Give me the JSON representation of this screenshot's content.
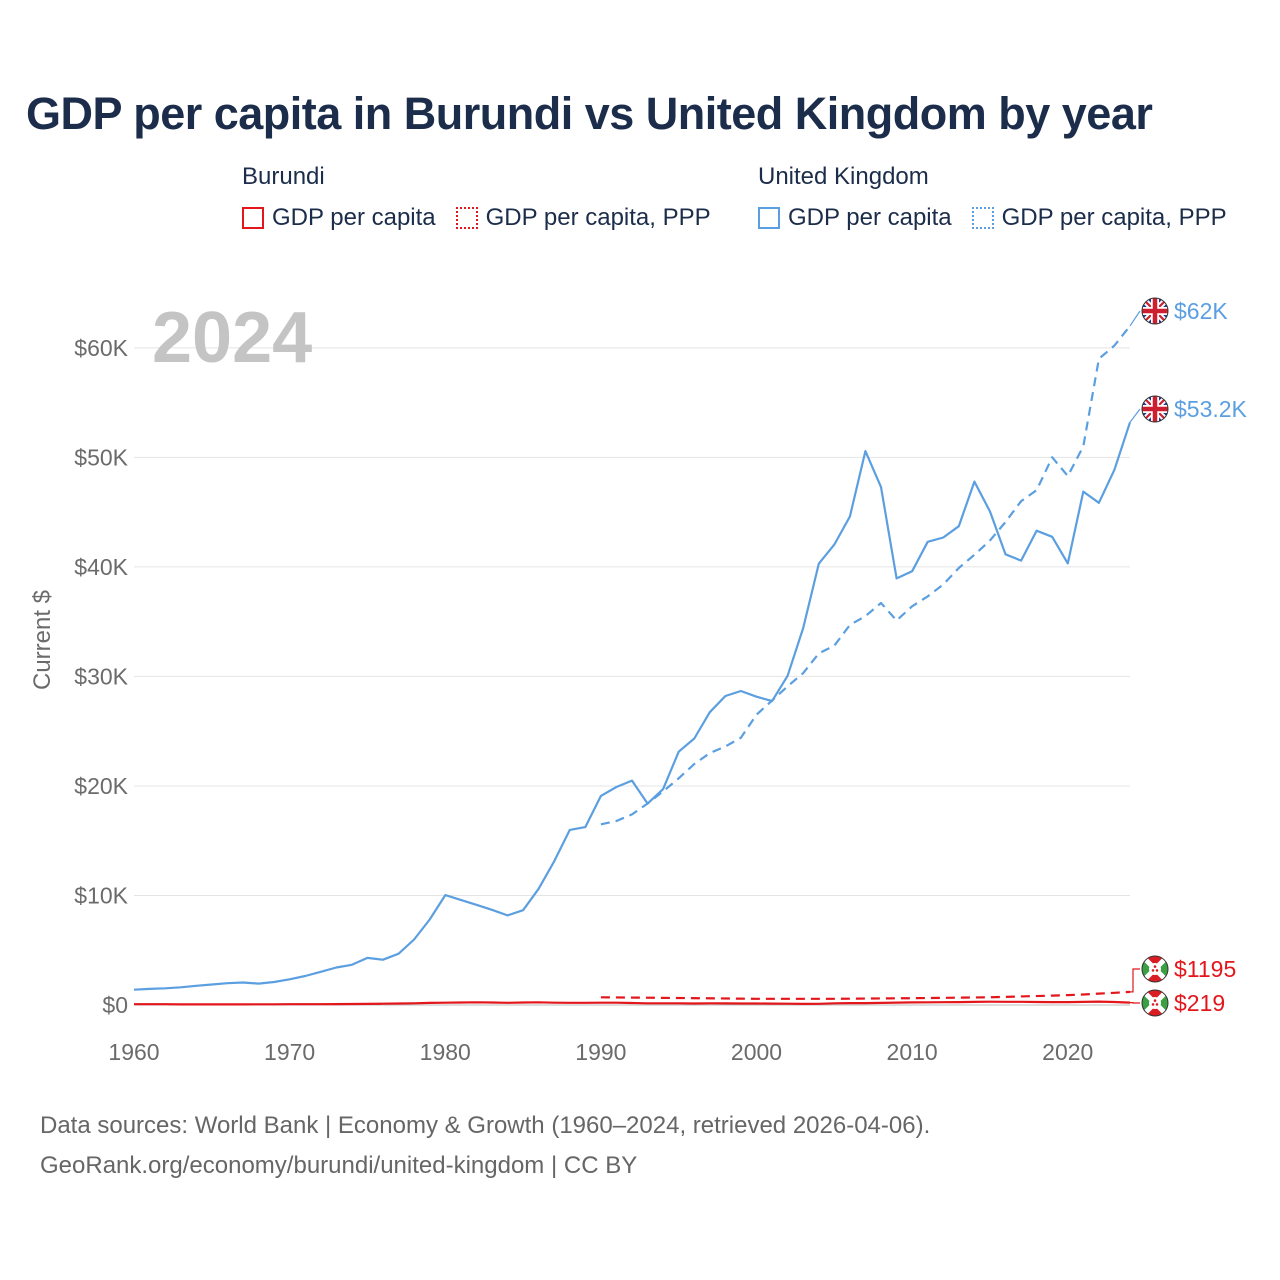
{
  "title": "GDP per capita in Burundi vs United Kingdom by year",
  "legend": {
    "burundi": {
      "name": "Burundi",
      "gdp": "GDP per capita",
      "ppp": "GDP per capita, PPP",
      "color": "#e3161b"
    },
    "uk": {
      "name": "United Kingdom",
      "gdp": "GDP per capita",
      "ppp": "GDP per capita, PPP",
      "color": "#5b9fe0"
    }
  },
  "year_watermark": "2024",
  "sources": {
    "line1": "Data sources: World Bank | Economy & Growth (1960–2024, retrieved 2026-04-06).",
    "line2": "GeoRank.org/economy/burundi/united-kingdom | CC BY"
  },
  "chart_data": {
    "type": "line",
    "title": "GDP per capita in Burundi vs United Kingdom by year",
    "xlabel": "",
    "ylabel": "Current $",
    "xlim": [
      1960,
      2024
    ],
    "ylim": [
      0,
      64000
    ],
    "grid": true,
    "x_ticks": [
      1960,
      1970,
      1980,
      1990,
      2000,
      2010,
      2020
    ],
    "x_tick_labels": [
      "1960",
      "1970",
      "1980",
      "1990",
      "2000",
      "2010",
      "2020"
    ],
    "y_ticks": [
      0,
      10000,
      20000,
      30000,
      40000,
      50000,
      60000
    ],
    "y_tick_labels": [
      "$0",
      "$10K",
      "$20K",
      "$30K",
      "$40K",
      "$50K",
      "$60K"
    ],
    "series": [
      {
        "name": "United Kingdom GDP per capita",
        "country": "United Kingdom",
        "style": "solid",
        "color": "#5b9fe0",
        "end_label": "$53.2K",
        "x": [
          1960,
          1961,
          1962,
          1963,
          1964,
          1965,
          1966,
          1967,
          1968,
          1969,
          1970,
          1971,
          1972,
          1973,
          1974,
          1975,
          1976,
          1977,
          1978,
          1979,
          1980,
          1981,
          1982,
          1983,
          1984,
          1985,
          1986,
          1987,
          1988,
          1989,
          1990,
          1991,
          1992,
          1993,
          1994,
          1995,
          1996,
          1997,
          1998,
          1999,
          2000,
          2001,
          2002,
          2003,
          2004,
          2005,
          2006,
          2007,
          2008,
          2009,
          2010,
          2011,
          2012,
          2013,
          2014,
          2015,
          2016,
          2017,
          2018,
          2019,
          2020,
          2021,
          2022,
          2023,
          2024
        ],
        "values": [
          1398,
          1472,
          1526,
          1613,
          1749,
          1874,
          1987,
          2058,
          1952,
          2101,
          2348,
          2650,
          3030,
          3426,
          3666,
          4300,
          4138,
          4681,
          5977,
          7805,
          10032,
          9599,
          9146,
          8691,
          8180,
          8652,
          10611,
          13118,
          15987,
          16239,
          19095,
          19900,
          20487,
          18389,
          19709,
          23123,
          24333,
          26734,
          28214,
          28669,
          28150,
          27744,
          30057,
          34420,
          40290,
          42030,
          44599,
          50566,
          47287,
          38952,
          39599,
          42285,
          42686,
          43713,
          47787,
          45071,
          41146,
          40572,
          43306,
          42747,
          40318,
          46870,
          45850,
          48867,
          53200
        ]
      },
      {
        "name": "United Kingdom GDP per capita, PPP",
        "country": "United Kingdom",
        "style": "dashed",
        "color": "#5b9fe0",
        "end_label": "$62K",
        "x": [
          1990,
          1991,
          1992,
          1993,
          1994,
          1995,
          1996,
          1997,
          1998,
          1999,
          2000,
          2001,
          2002,
          2003,
          2004,
          2005,
          2006,
          2007,
          2008,
          2009,
          2010,
          2011,
          2012,
          2013,
          2014,
          2015,
          2016,
          2017,
          2018,
          2019,
          2020,
          2021,
          2022,
          2023,
          2024
        ],
        "values": [
          16500,
          16800,
          17400,
          18400,
          19500,
          20700,
          22000,
          23000,
          23600,
          24400,
          26500,
          27800,
          29100,
          30300,
          32100,
          32800,
          34700,
          35500,
          36700,
          35100,
          36400,
          37300,
          38400,
          39900,
          41100,
          42400,
          44100,
          46000,
          47000,
          50000,
          48300,
          51000,
          59000,
          60200,
          62000
        ]
      },
      {
        "name": "Burundi GDP per capita",
        "country": "Burundi",
        "style": "solid",
        "color": "#e3161b",
        "end_label": "$219",
        "x": [
          1960,
          1961,
          1962,
          1963,
          1964,
          1965,
          1966,
          1967,
          1968,
          1969,
          1970,
          1971,
          1972,
          1973,
          1974,
          1975,
          1976,
          1977,
          1978,
          1979,
          1980,
          1981,
          1982,
          1983,
          1984,
          1985,
          1986,
          1987,
          1988,
          1989,
          1990,
          1991,
          1992,
          1993,
          1994,
          1995,
          1996,
          1997,
          1998,
          1999,
          2000,
          2001,
          2002,
          2003,
          2004,
          2005,
          2006,
          2007,
          2008,
          2009,
          2010,
          2011,
          2012,
          2013,
          2014,
          2015,
          2016,
          2017,
          2018,
          2019,
          2020,
          2021,
          2022,
          2023,
          2024
        ],
        "values": [
          70,
          71,
          72,
          51,
          53,
          56,
          55,
          59,
          61,
          64,
          70,
          74,
          73,
          84,
          89,
          103,
          118,
          136,
          159,
          189,
          214,
          228,
          245,
          225,
          204,
          232,
          243,
          213,
          198,
          202,
          208,
          211,
          187,
          158,
          154,
          158,
          139,
          153,
          145,
          135,
          136,
          127,
          117,
          104,
          112,
          152,
          169,
          172,
          196,
          218,
          234,
          247,
          254,
          265,
          281,
          305,
          289,
          293,
          274,
          261,
          262,
          285,
          312,
          275,
          219
        ]
      },
      {
        "name": "Burundi GDP per capita, PPP",
        "country": "Burundi",
        "style": "dashed",
        "color": "#e3161b",
        "end_label": "$1195",
        "x": [
          1990,
          1995,
          2000,
          2005,
          2010,
          2015,
          2019,
          2020,
          2021,
          2022,
          2023,
          2024
        ],
        "values": [
          700,
          640,
          570,
          570,
          620,
          700,
          860,
          900,
          960,
          1040,
          1110,
          1195
        ]
      }
    ]
  }
}
